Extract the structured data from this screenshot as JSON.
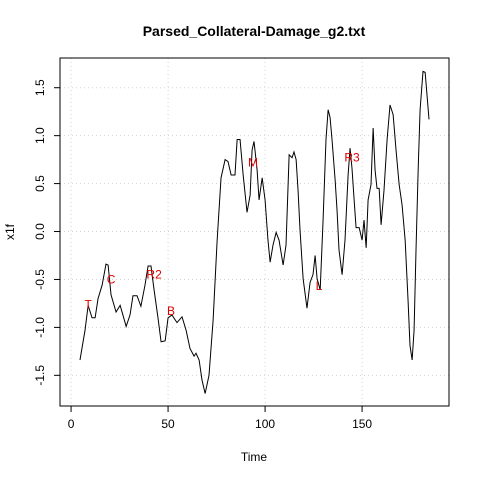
{
  "chart_data": {
    "type": "line",
    "title": "Parsed_Collateral-Damage_g2.txt",
    "x_label": "Time",
    "y_label": "x1f",
    "xlim": [
      -5.7,
      194.8
    ],
    "ylim": [
      -1.82,
      1.81
    ],
    "xticks": [
      0,
      50,
      100,
      150
    ],
    "yticks": [
      -1.5,
      {
        "value": -1,
        "label": "-1.0"
      },
      -0.5,
      {
        "value": 0,
        "label": "0.0"
      },
      0.5,
      {
        "value": 1,
        "label": "1.0"
      },
      1.5
    ],
    "grid": true,
    "series": [
      {
        "color": "#000000",
        "x": [
          4.6,
          7.2,
          8.8,
          10.8,
          12.4,
          13.9,
          16,
          17,
          18,
          19.1,
          20.6,
          23.2,
          25.3,
          28.4,
          30.4,
          31.9,
          34,
          36,
          38.1,
          39.7,
          41.2,
          42.8,
          44.8,
          46.4,
          48.5,
          50,
          52,
          54.6,
          57.2,
          59.3,
          61.3,
          63.4,
          64.4,
          66,
          67.5,
          69.1,
          71.1,
          73.2,
          75.3,
          77.3,
          79.4,
          80.9,
          82.5,
          84.5,
          85.6,
          87.1,
          88.7,
          90.7,
          92.3,
          93.3,
          94.3,
          95.9,
          96.9,
          98.5,
          100,
          101.5,
          102.6,
          104.1,
          105.7,
          107.2,
          109.3,
          110.8,
          112.4,
          113.9,
          114.9,
          116,
          117,
          118,
          119.6,
          121.6,
          123.2,
          124.7,
          125.8,
          126.8,
          128.4,
          129.9,
          131.4,
          132.5,
          133.5,
          134.5,
          136.1,
          137.1,
          138.1,
          139.7,
          141.2,
          142.8,
          143.8,
          144.8,
          145.9,
          146.9,
          148.5,
          150,
          151,
          152.1,
          153.1,
          154.6,
          155.7,
          156.7,
          157.7,
          158.8,
          159.8,
          161.3,
          162.9,
          164.4,
          166,
          167.5,
          169.1,
          170.6,
          172.2,
          173.7,
          174.7,
          175.8,
          176.8,
          177.8,
          178.9,
          179.9,
          181.4,
          182.5,
          184.5
        ],
        "values": [
          -1.34,
          -1.03,
          -0.77,
          -0.9,
          -0.9,
          -0.7,
          -0.56,
          -0.45,
          -0.34,
          -0.35,
          -0.66,
          -0.84,
          -0.77,
          -0.99,
          -0.87,
          -0.67,
          -0.67,
          -0.78,
          -0.56,
          -0.36,
          -0.36,
          -0.61,
          -0.9,
          -1.15,
          -1.14,
          -0.9,
          -0.87,
          -0.95,
          -0.89,
          -1.03,
          -1.22,
          -1.3,
          -1.27,
          -1.34,
          -1.55,
          -1.69,
          -1.5,
          -0.93,
          -0.09,
          0.56,
          0.75,
          0.73,
          0.59,
          0.59,
          0.96,
          0.96,
          0.59,
          0.2,
          0.38,
          0.85,
          0.94,
          0.64,
          0.33,
          0.56,
          0.33,
          -0.09,
          -0.32,
          -0.14,
          -0.01,
          -0.09,
          -0.35,
          -0.14,
          0.8,
          0.77,
          0.83,
          0.75,
          0.43,
          0.02,
          -0.49,
          -0.8,
          -0.53,
          -0.45,
          -0.25,
          -0.49,
          -0.61,
          0.12,
          0.96,
          1.27,
          1.19,
          0.96,
          0.54,
          0.22,
          -0.19,
          -0.45,
          -0.09,
          0.59,
          0.87,
          0.66,
          0.33,
          0.04,
          0.04,
          -0.09,
          0.12,
          -0.17,
          0.33,
          0.49,
          1.08,
          0.64,
          0.45,
          0.45,
          0.07,
          0.43,
          0.96,
          1.32,
          1.22,
          0.85,
          0.49,
          0.28,
          -0.09,
          -0.72,
          -1.19,
          -1.34,
          -1.03,
          -0.19,
          0.64,
          1.27,
          1.67,
          1.66,
          1.17
        ]
      }
    ],
    "annotations": [
      {
        "text": "T",
        "x": 8.8,
        "y": -0.76,
        "color": "#e00000"
      },
      {
        "text": "C",
        "x": 20.6,
        "y": -0.5,
        "color": "#e00000"
      },
      {
        "text": "R2",
        "x": 42.8,
        "y": -0.45,
        "color": "#e00000"
      },
      {
        "text": "B",
        "x": 51.5,
        "y": -0.83,
        "color": "#e00000"
      },
      {
        "text": "M",
        "x": 93.8,
        "y": 0.72,
        "color": "#e00000"
      },
      {
        "text": "L",
        "x": 127.8,
        "y": -0.57,
        "color": "#e00000"
      },
      {
        "text": "R3",
        "x": 144.8,
        "y": 0.77,
        "color": "#e00000"
      }
    ]
  }
}
